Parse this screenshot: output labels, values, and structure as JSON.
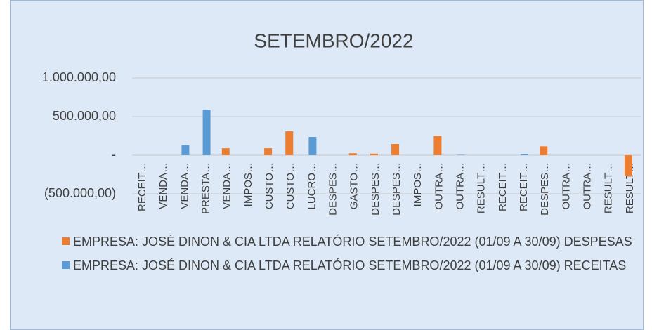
{
  "chart_data": {
    "type": "bar",
    "title": "SETEMBRO/2022",
    "categories": [
      "RECEIT…",
      "VENDA…",
      "VENDA…",
      "PRESTA…",
      "VENDA…",
      "IMPOS…",
      "CUSTO…",
      "CUSTO…",
      "LUCRO…",
      "DESPES…",
      "GASTO…",
      "DESPES…",
      "DESPES…",
      "IMPOS…",
      "OUTRA…",
      "OUTRA…",
      "RESULT…",
      "RECEIT…",
      "RECEIT…",
      "DESPES…",
      "OUTRA…",
      "OUTRA…",
      "RESULT…",
      "RESULT…"
    ],
    "series": [
      {
        "name": "EMPRESA: JOSÉ DINON & CIA LTDA RELATÓRIO SETEMBRO/2022 (01/09 A 30/09) DESPESAS",
        "color": "#ed7d31",
        "values": [
          0,
          0,
          0,
          0,
          90000,
          0,
          90000,
          310000,
          0,
          0,
          25000,
          20000,
          145000,
          0,
          250000,
          0,
          0,
          0,
          0,
          115000,
          0,
          0,
          0,
          -270000
        ]
      },
      {
        "name": "EMPRESA: JOSÉ DINON & CIA LTDA RELATÓRIO SETEMBRO/2022 (01/09 A 30/09) RECEITAS",
        "color": "#5b9bd5",
        "values": [
          0,
          0,
          130000,
          590000,
          0,
          0,
          0,
          0,
          236000,
          0,
          0,
          0,
          0,
          0,
          0,
          5000,
          0,
          0,
          15000,
          0,
          0,
          0,
          0,
          0
        ]
      }
    ],
    "ylim": [
      -500000,
      1000000
    ],
    "yticks": [
      {
        "value": -500000,
        "label": "(500.000,00)"
      },
      {
        "value": 0,
        "label": "-"
      },
      {
        "value": 500000,
        "label": "500.000,00"
      },
      {
        "value": 1000000,
        "label": "1.000.000,00"
      }
    ],
    "grid": true
  }
}
